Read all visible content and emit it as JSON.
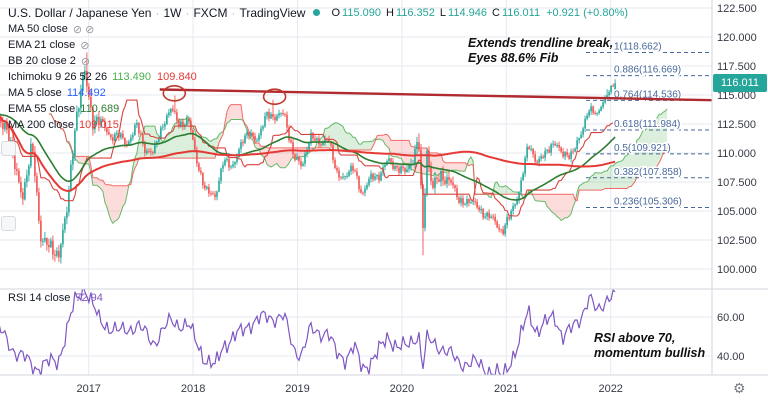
{
  "header": {
    "symbol": "U.S. Dollar / Japanese Yen",
    "interval": "1W",
    "exchange": "FXCM",
    "brand": "TradingView",
    "sep": "·",
    "ohlc": [
      {
        "k": "O",
        "v": "115.090"
      },
      {
        "k": "H",
        "v": "116.352"
      },
      {
        "k": "L",
        "v": "114.946"
      },
      {
        "k": "C",
        "v": "116.011"
      }
    ],
    "change": "+0.921 (+0.80%)"
  },
  "legend": {
    "indicators": [
      {
        "label": "MA 50 close",
        "hidden": true,
        "icon_count": 2
      },
      {
        "label": "EMA 21 close",
        "hidden": true,
        "icon_count": 1
      },
      {
        "label": "BB 20 close 2",
        "hidden": true,
        "icon_count": 1
      },
      {
        "label": "Ichimoku 9 26 52 26",
        "hidden": false,
        "values": [
          {
            "text": "113.490",
            "color": "#4caf50"
          },
          {
            "text": "109.840",
            "color": "#e53935"
          }
        ]
      },
      {
        "label": "MA 5 close",
        "hidden": false,
        "values": [
          {
            "text": "114.492",
            "color": "#2962ff"
          }
        ]
      },
      {
        "label": "EMA 55 close",
        "hidden": false,
        "values": [
          {
            "text": "110.689",
            "color": "#2e7d32"
          }
        ]
      },
      {
        "label": "MA 200 close",
        "hidden": false,
        "values": [
          {
            "text": "109.015",
            "color": "#e53935"
          }
        ]
      }
    ],
    "rsi_row": {
      "label": "RSI 14 close",
      "value": "72.94"
    }
  },
  "misc": {
    "gear": "⚙",
    "hidden_eye": "⊘"
  },
  "colors": {
    "up": "#26a69a",
    "down": "#ef5350",
    "cloud_up": "rgba(76,175,80,0.20)",
    "cloud_down": "rgba(239,83,80,0.20)",
    "span_a": "#4caf50",
    "span_b": "#ef5350",
    "kijun": "#d9443f",
    "ema55": "#2e7d32",
    "ma200": "#e53935",
    "trendline": "#b02a30",
    "circle": "#c0392b",
    "fib": "#49699c",
    "rsi": "#7e57c2",
    "grid": "#e6e9ef",
    "divider": "#d3d6dc",
    "axis_text": "#363a45",
    "badge_bg": "#26a69a",
    "status_dot": "#26a69a"
  },
  "chart_data": {
    "type": "candlestick",
    "symbol": "USD/JPY",
    "interval": "1W",
    "x_ticks": [
      {
        "label": "2017",
        "t": 2017
      },
      {
        "label": "2018",
        "t": 2018
      },
      {
        "label": "2019",
        "t": 2019
      },
      {
        "label": "2020",
        "t": 2020
      },
      {
        "label": "2021",
        "t": 2021
      },
      {
        "label": "2022",
        "t": 2022
      }
    ],
    "price_axis": {
      "ticks": [
        {
          "label": "122.500",
          "value": 122.5
        },
        {
          "label": "120.000",
          "value": 120
        },
        {
          "label": "117.500",
          "value": 117.5
        },
        {
          "label": "115.000",
          "value": 115
        },
        {
          "label": "112.500",
          "value": 112.5
        },
        {
          "label": "110.000",
          "value": 110
        },
        {
          "label": "107.500",
          "value": 107.5
        },
        {
          "label": "105.000",
          "value": 105
        },
        {
          "label": "102.500",
          "value": 102.5
        },
        {
          "label": "100.000",
          "value": 100
        }
      ],
      "last": 116.011,
      "last_label": "116.011"
    },
    "last_candle": {
      "o": 115.09,
      "h": 116.352,
      "l": 114.946,
      "c": 116.011
    },
    "anchors": [
      [
        2016.12,
        113.0
      ],
      [
        2016.21,
        112.4
      ],
      [
        2016.29,
        108.8
      ],
      [
        2016.37,
        106.4
      ],
      [
        2016.46,
        110.6
      ],
      [
        2016.54,
        102.8
      ],
      [
        2016.62,
        101.8
      ],
      [
        2016.71,
        101.3
      ],
      [
        2016.79,
        104.8
      ],
      [
        2016.87,
        112.5
      ],
      [
        2016.96,
        117.0
      ],
      [
        2017.04,
        112.8
      ],
      [
        2017.12,
        112.7
      ],
      [
        2017.21,
        111.4
      ],
      [
        2017.29,
        111.5
      ],
      [
        2017.37,
        110.8
      ],
      [
        2017.46,
        112.4
      ],
      [
        2017.54,
        110.3
      ],
      [
        2017.62,
        110.0
      ],
      [
        2017.71,
        112.5
      ],
      [
        2017.79,
        113.8
      ],
      [
        2017.87,
        112.5
      ],
      [
        2017.96,
        112.7
      ],
      [
        2018.04,
        109.2
      ],
      [
        2018.12,
        106.7
      ],
      [
        2018.21,
        106.3
      ],
      [
        2018.29,
        109.3
      ],
      [
        2018.37,
        108.8
      ],
      [
        2018.46,
        110.7
      ],
      [
        2018.54,
        111.9
      ],
      [
        2018.62,
        111.0
      ],
      [
        2018.71,
        113.6
      ],
      [
        2018.79,
        112.9
      ],
      [
        2018.87,
        113.6
      ],
      [
        2018.96,
        109.7
      ],
      [
        2019.04,
        108.9
      ],
      [
        2019.12,
        111.4
      ],
      [
        2019.21,
        110.8
      ],
      [
        2019.29,
        111.4
      ],
      [
        2019.37,
        108.3
      ],
      [
        2019.46,
        107.9
      ],
      [
        2019.54,
        108.8
      ],
      [
        2019.62,
        106.3
      ],
      [
        2019.71,
        108.1
      ],
      [
        2019.79,
        108.0
      ],
      [
        2019.87,
        109.5
      ],
      [
        2019.96,
        108.6
      ],
      [
        2020.04,
        108.4
      ],
      [
        2020.12,
        109.9
      ],
      [
        2020.16,
        111.3
      ],
      [
        2020.2,
        103.0
      ],
      [
        2020.24,
        110.2
      ],
      [
        2020.29,
        107.2
      ],
      [
        2020.37,
        107.8
      ],
      [
        2020.46,
        107.9
      ],
      [
        2020.54,
        105.8
      ],
      [
        2020.62,
        105.9
      ],
      [
        2020.71,
        105.5
      ],
      [
        2020.79,
        104.7
      ],
      [
        2020.87,
        104.3
      ],
      [
        2020.96,
        103.2
      ],
      [
        2021.04,
        104.7
      ],
      [
        2021.12,
        106.6
      ],
      [
        2021.21,
        110.7
      ],
      [
        2021.29,
        109.3
      ],
      [
        2021.37,
        109.8
      ],
      [
        2021.46,
        111.1
      ],
      [
        2021.54,
        109.7
      ],
      [
        2021.62,
        110.0
      ],
      [
        2021.71,
        111.3
      ],
      [
        2021.79,
        114.0
      ],
      [
        2021.87,
        113.2
      ],
      [
        2021.96,
        115.1
      ],
      [
        2022.04,
        116.011
      ]
    ],
    "spikes": [
      {
        "t": 2016.98,
        "high": 118.662
      },
      {
        "t": 2017.83,
        "high": 114.95
      },
      {
        "t": 2018.77,
        "high": 114.6
      },
      {
        "t": 2020.16,
        "high": 111.71
      },
      {
        "t": 2020.2,
        "low": 101.18
      },
      {
        "t": 2021.96,
        "high": 115.5
      }
    ],
    "ichimoku": {
      "conversion": 9,
      "base": 26,
      "lagging": 52,
      "displacement": 26
    },
    "fib_levels": [
      {
        "text": "1(118.662)",
        "price": 118.662
      },
      {
        "text": "0.886(116.669)",
        "price": 116.669
      },
      {
        "text": "0.764(114.536)",
        "price": 114.536
      },
      {
        "text": "0.618(111.984)",
        "price": 111.984
      },
      {
        "text": "0.5(109.921)",
        "price": 109.921
      },
      {
        "text": "0.382(107.858)",
        "price": 107.858
      },
      {
        "text": "0.236(105.306)",
        "price": 105.306
      }
    ],
    "trendline": {
      "t1": 2017.68,
      "p1": 115.47,
      "t2": 2022.97,
      "p2": 114.55
    },
    "circles": [
      {
        "t": 2017.82,
        "p": 115.15
      },
      {
        "t": 2018.78,
        "p": 114.85
      }
    ],
    "annotations": [
      {
        "line1": "Extends trendline break,",
        "line2": "Eyes 88.6% Fib"
      },
      {
        "line1": "RSI above 70,",
        "line2": "momentum bullish"
      }
    ],
    "rsi": {
      "period": 14,
      "current": 72.94,
      "ticks": [
        {
          "label": "60.00",
          "value": 60
        },
        {
          "label": "40.00",
          "value": 40
        }
      ],
      "anchors": [
        [
          2016.12,
          55
        ],
        [
          2016.3,
          42
        ],
        [
          2016.5,
          34
        ],
        [
          2016.71,
          38
        ],
        [
          2016.87,
          68
        ],
        [
          2016.96,
          76
        ],
        [
          2017.1,
          58
        ],
        [
          2017.3,
          52
        ],
        [
          2017.46,
          56
        ],
        [
          2017.62,
          47
        ],
        [
          2017.79,
          58
        ],
        [
          2017.96,
          55
        ],
        [
          2018.12,
          38
        ],
        [
          2018.21,
          34
        ],
        [
          2018.29,
          46
        ],
        [
          2018.46,
          52
        ],
        [
          2018.54,
          57
        ],
        [
          2018.71,
          60
        ],
        [
          2018.87,
          60
        ],
        [
          2018.96,
          44
        ],
        [
          2019.04,
          41
        ],
        [
          2019.12,
          53
        ],
        [
          2019.29,
          52
        ],
        [
          2019.37,
          41
        ],
        [
          2019.46,
          39
        ],
        [
          2019.54,
          45
        ],
        [
          2019.62,
          33
        ],
        [
          2019.79,
          43
        ],
        [
          2019.87,
          50
        ],
        [
          2019.96,
          45
        ],
        [
          2020.04,
          44
        ],
        [
          2020.16,
          52
        ],
        [
          2020.2,
          34
        ],
        [
          2020.24,
          48
        ],
        [
          2020.37,
          45
        ],
        [
          2020.54,
          37
        ],
        [
          2020.71,
          36
        ],
        [
          2020.87,
          32
        ],
        [
          2020.96,
          29
        ],
        [
          2021.04,
          38
        ],
        [
          2021.12,
          46
        ],
        [
          2021.21,
          63
        ],
        [
          2021.29,
          53
        ],
        [
          2021.37,
          56
        ],
        [
          2021.46,
          61
        ],
        [
          2021.54,
          50
        ],
        [
          2021.62,
          53
        ],
        [
          2021.71,
          60
        ],
        [
          2021.79,
          70
        ],
        [
          2021.87,
          62
        ],
        [
          2021.96,
          70
        ],
        [
          2022.04,
          72.94
        ]
      ]
    }
  }
}
